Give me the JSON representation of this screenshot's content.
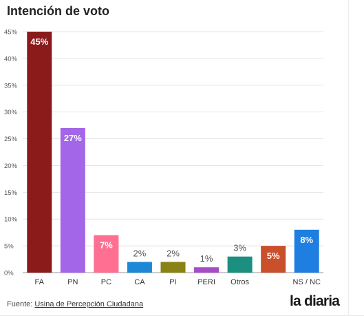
{
  "chart_data": {
    "type": "bar",
    "title": "Intención de voto",
    "categories": [
      "FA",
      "PN",
      "PC",
      "CA",
      "PI",
      "PERI",
      "Otros",
      "",
      "NS / NC"
    ],
    "values": [
      45,
      27,
      7,
      2,
      2,
      1,
      3,
      5,
      8
    ],
    "data_labels": [
      "45%",
      "27%",
      "7%",
      "2%",
      "2%",
      "1%",
      "3%",
      "5%",
      "8%"
    ],
    "colors": [
      "#8b1a1a",
      "#a466e8",
      "#ff6f91",
      "#1e88d6",
      "#8a8214",
      "#a64cc6",
      "#1b9080",
      "#c9502b",
      "#1f7fe0"
    ],
    "ylim": [
      0,
      45
    ],
    "yticks": [
      "0%",
      "5%",
      "10%",
      "15%",
      "20%",
      "25%",
      "30%",
      "35%",
      "40%",
      "45%"
    ],
    "grid": true,
    "xlabel": "",
    "ylabel": ""
  },
  "footer": {
    "source_prefix": "Fuente: ",
    "source_link": "Usina de Percepción Ciudadana",
    "brand": "la diaria"
  }
}
